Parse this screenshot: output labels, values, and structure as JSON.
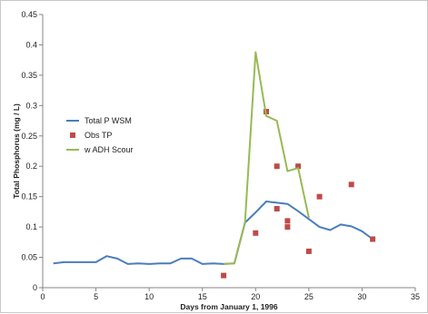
{
  "chart_data": {
    "type": "line",
    "xlabel": "Days from January 1, 1996",
    "ylabel": "Total Phosphorus (mg / L)",
    "xlim": [
      0,
      35
    ],
    "ylim": [
      0,
      0.45
    ],
    "x_ticks": [
      0,
      5,
      10,
      15,
      20,
      25,
      30,
      35
    ],
    "y_ticks": [
      0,
      0.05,
      0.1,
      0.15,
      0.2,
      0.25,
      0.3,
      0.35,
      0.4,
      0.45
    ],
    "y_tick_labels": [
      "0",
      "0.05",
      "0.1",
      "0.15",
      "0.2",
      "0.25",
      "0.3",
      "0.35",
      "0.4",
      "0.45"
    ],
    "grid": false,
    "legend_position": "left",
    "series": [
      {
        "name": "Total P WSM",
        "kind": "line",
        "color": "#4a7ebb",
        "x": [
          1,
          2,
          3,
          4,
          5,
          6,
          7,
          8,
          9,
          10,
          11,
          12,
          13,
          14,
          15,
          16,
          17,
          18,
          19,
          20,
          21,
          22,
          23,
          24,
          25,
          26,
          27,
          28,
          29,
          30,
          31
        ],
        "y": [
          0.04,
          0.042,
          0.042,
          0.042,
          0.042,
          0.052,
          0.048,
          0.039,
          0.04,
          0.039,
          0.04,
          0.04,
          0.048,
          0.048,
          0.039,
          0.04,
          0.039,
          0.04,
          0.107,
          0.124,
          0.142,
          0.14,
          0.138,
          0.126,
          0.113,
          0.1,
          0.095,
          0.104,
          0.101,
          0.093,
          0.08
        ]
      },
      {
        "name": "Obs TP",
        "kind": "scatter",
        "color": "#be4b48",
        "x": [
          17,
          20,
          21,
          22,
          22,
          23,
          23,
          24,
          25,
          26,
          29,
          31
        ],
        "y": [
          0.02,
          0.09,
          0.29,
          0.2,
          0.13,
          0.11,
          0.1,
          0.2,
          0.06,
          0.15,
          0.17,
          0.08
        ]
      },
      {
        "name": "w ADH Scour",
        "kind": "line",
        "color": "#98b954",
        "x": [
          17,
          18,
          19,
          20,
          21,
          22,
          23,
          24,
          25
        ],
        "y": [
          0.039,
          0.04,
          0.107,
          0.388,
          0.283,
          0.275,
          0.192,
          0.197,
          0.115
        ]
      }
    ]
  }
}
